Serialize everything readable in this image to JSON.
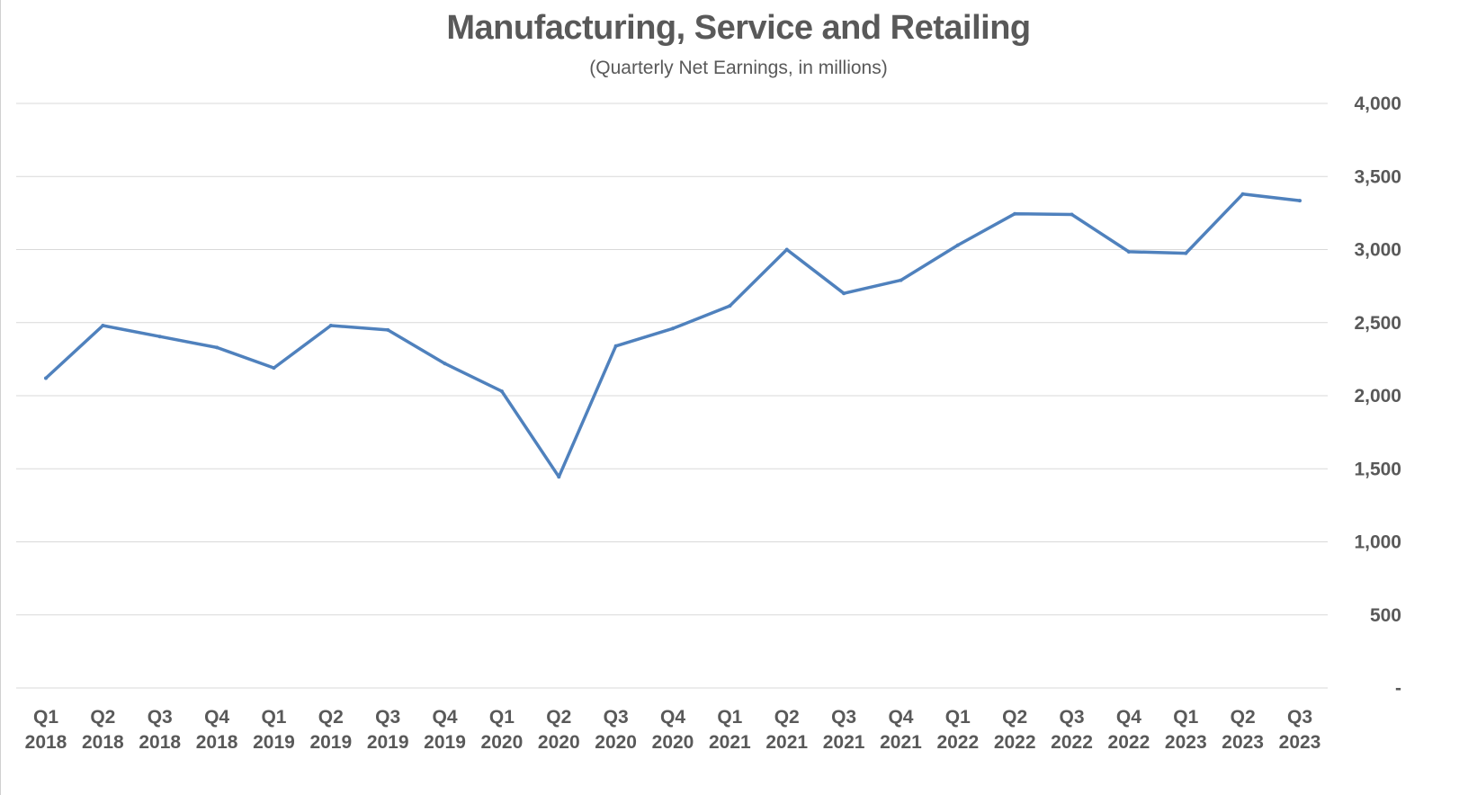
{
  "chart_data": {
    "type": "line",
    "title": "Manufacturing, Service and Retailing",
    "subtitle": "(Quarterly Net Earnings, in millions)",
    "xlabel": "",
    "ylabel": "",
    "categories": [
      [
        "Q1",
        "2018"
      ],
      [
        "Q2",
        "2018"
      ],
      [
        "Q3",
        "2018"
      ],
      [
        "Q4",
        "2018"
      ],
      [
        "Q1",
        "2019"
      ],
      [
        "Q2",
        "2019"
      ],
      [
        "Q3",
        "2019"
      ],
      [
        "Q4",
        "2019"
      ],
      [
        "Q1",
        "2020"
      ],
      [
        "Q2",
        "2020"
      ],
      [
        "Q3",
        "2020"
      ],
      [
        "Q4",
        "2020"
      ],
      [
        "Q1",
        "2021"
      ],
      [
        "Q2",
        "2021"
      ],
      [
        "Q3",
        "2021"
      ],
      [
        "Q4",
        "2021"
      ],
      [
        "Q1",
        "2022"
      ],
      [
        "Q2",
        "2022"
      ],
      [
        "Q3",
        "2022"
      ],
      [
        "Q4",
        "2022"
      ],
      [
        "Q1",
        "2023"
      ],
      [
        "Q2",
        "2023"
      ],
      [
        "Q3",
        "2023"
      ]
    ],
    "series": [
      {
        "values": [
          2120,
          2480,
          2405,
          2330,
          2190,
          2480,
          2450,
          2220,
          2030,
          1445,
          2340,
          2460,
          2615,
          3000,
          2700,
          2790,
          3030,
          3245,
          3240,
          2985,
          2975,
          3380,
          3335
        ]
      }
    ],
    "ylim": [
      0,
      4000
    ],
    "yticks": [
      0,
      500,
      1000,
      1500,
      2000,
      2500,
      3000,
      3500,
      4000
    ],
    "ytick_labels": [
      "-",
      "500",
      "1,000",
      "1,500",
      "2,000",
      "2,500",
      "3,000",
      "3,500",
      "4,000"
    ],
    "y_axis_side": "right",
    "grid": true,
    "legend": "none",
    "colors": {
      "line": "#4f81bd",
      "grid": "#d9d9d9",
      "text": "#595959"
    }
  }
}
